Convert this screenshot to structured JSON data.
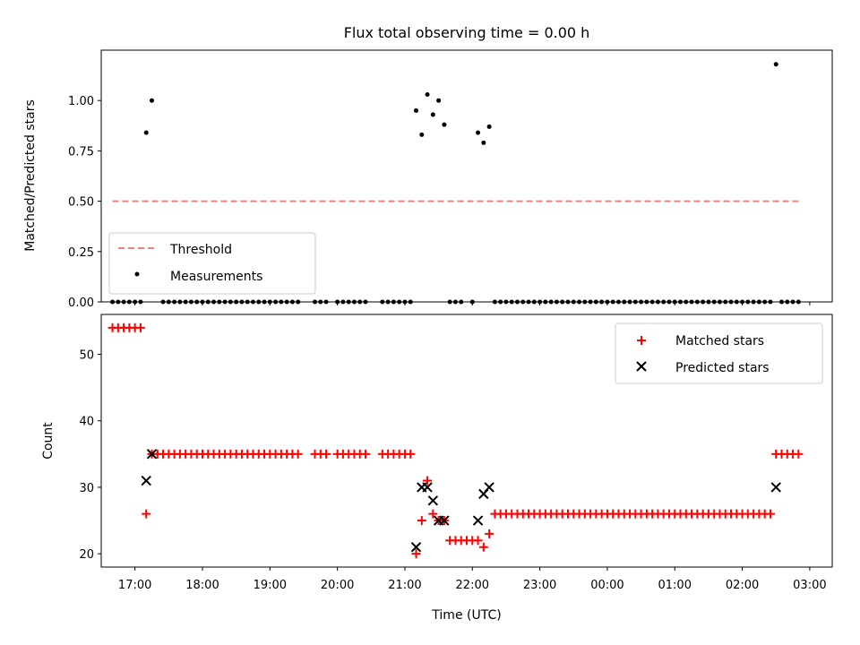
{
  "chart_data": [
    {
      "type": "scatter",
      "title": "Flux total observing time = 0.00 h",
      "xlabel": "",
      "ylabel": "Matched/Predicted stars",
      "x_unit": "time (UTC)",
      "xlim": [
        "16:30",
        "03:20"
      ],
      "ylim": [
        0,
        1.25
      ],
      "yticks": [
        "0.00",
        "0.25",
        "0.50",
        "0.75",
        "1.00"
      ],
      "legend_position": "lower-left",
      "series": [
        {
          "name": "Threshold",
          "style": "dashed-line",
          "color": "#f08080",
          "x": [
            "16:40",
            "02:50"
          ],
          "y": [
            0.5,
            0.5
          ]
        },
        {
          "name": "Measurements",
          "style": "dot",
          "color": "#000000",
          "x": [
            "16:40",
            "16:45",
            "16:50",
            "16:55",
            "17:00",
            "17:05",
            "17:10",
            "17:15",
            "17:25",
            "17:30",
            "17:35",
            "17:40",
            "17:45",
            "17:50",
            "17:55",
            "18:00",
            "18:05",
            "18:10",
            "18:15",
            "18:20",
            "18:25",
            "18:30",
            "18:35",
            "18:40",
            "18:45",
            "18:50",
            "18:55",
            "19:00",
            "19:05",
            "19:10",
            "19:15",
            "19:20",
            "19:25",
            "19:40",
            "19:45",
            "19:50",
            "20:00",
            "20:05",
            "20:10",
            "20:15",
            "20:20",
            "20:25",
            "20:40",
            "20:45",
            "20:50",
            "20:55",
            "21:00",
            "21:05",
            "21:10",
            "21:15",
            "21:20",
            "21:25",
            "21:30",
            "21:35",
            "21:40",
            "21:45",
            "21:50",
            "22:00",
            "22:05",
            "22:10",
            "22:15",
            "22:20",
            "22:25",
            "22:30",
            "22:35",
            "22:40",
            "22:45",
            "22:50",
            "22:55",
            "23:00",
            "23:05",
            "23:10",
            "23:15",
            "23:20",
            "23:25",
            "23:30",
            "23:35",
            "23:40",
            "23:45",
            "23:50",
            "23:55",
            "00:00",
            "00:05",
            "00:10",
            "00:15",
            "00:20",
            "00:25",
            "00:30",
            "00:35",
            "00:40",
            "00:45",
            "00:50",
            "00:55",
            "01:00",
            "01:05",
            "01:10",
            "01:15",
            "01:20",
            "01:25",
            "01:30",
            "01:35",
            "01:40",
            "01:45",
            "01:50",
            "01:55",
            "02:00",
            "02:05",
            "02:10",
            "02:15",
            "02:20",
            "02:25",
            "02:30",
            "02:35",
            "02:40",
            "02:45",
            "02:50"
          ],
          "y": [
            0,
            0,
            0,
            0,
            0,
            0,
            0.84,
            1.0,
            0,
            0,
            0,
            0,
            0,
            0,
            0,
            0,
            0,
            0,
            0,
            0,
            0,
            0,
            0,
            0,
            0,
            0,
            0,
            0,
            0,
            0,
            0,
            0,
            0,
            0,
            0,
            0,
            0,
            0,
            0,
            0,
            0,
            0,
            0,
            0,
            0,
            0,
            0,
            0,
            0.95,
            0.83,
            1.03,
            0.93,
            1.0,
            0.88,
            0,
            0,
            0,
            0,
            0.84,
            0.79,
            0.87,
            0,
            0,
            0,
            0,
            0,
            0,
            0,
            0,
            0,
            0,
            0,
            0,
            0,
            0,
            0,
            0,
            0,
            0,
            0,
            0,
            0,
            0,
            0,
            0,
            0,
            0,
            0,
            0,
            0,
            0,
            0,
            0,
            0,
            0,
            0,
            0,
            0,
            0,
            0,
            0,
            0,
            0,
            0,
            0,
            0,
            0,
            0,
            0,
            0,
            0,
            1.18,
            0,
            0,
            0,
            0
          ]
        }
      ]
    },
    {
      "type": "scatter",
      "title": "",
      "xlabel": "Time (UTC)",
      "ylabel": "Count",
      "x_unit": "time (UTC)",
      "xlim": [
        "16:30",
        "03:20"
      ],
      "ylim": [
        18,
        56
      ],
      "yticks": [
        "20",
        "30",
        "40",
        "50"
      ],
      "xticks": [
        "17:00",
        "18:00",
        "19:00",
        "20:00",
        "21:00",
        "22:00",
        "23:00",
        "00:00",
        "01:00",
        "02:00",
        "03:00"
      ],
      "legend_position": "upper-right",
      "series": [
        {
          "name": "Matched stars",
          "marker": "+",
          "color": "#ff0000",
          "x": [
            "16:40",
            "16:45",
            "16:50",
            "16:55",
            "17:00",
            "17:05",
            "17:10",
            "17:15",
            "17:20",
            "17:25",
            "17:30",
            "17:35",
            "17:40",
            "17:45",
            "17:50",
            "17:55",
            "18:00",
            "18:05",
            "18:10",
            "18:15",
            "18:20",
            "18:25",
            "18:30",
            "18:35",
            "18:40",
            "18:45",
            "18:50",
            "18:55",
            "19:00",
            "19:05",
            "19:10",
            "19:15",
            "19:20",
            "19:25",
            "19:40",
            "19:45",
            "19:50",
            "20:00",
            "20:05",
            "20:10",
            "20:15",
            "20:20",
            "20:25",
            "20:40",
            "20:45",
            "20:50",
            "20:55",
            "21:00",
            "21:05",
            "21:10",
            "21:15",
            "21:20",
            "21:25",
            "21:30",
            "21:35",
            "21:40",
            "21:45",
            "21:50",
            "21:55",
            "22:00",
            "22:05",
            "22:10",
            "22:15",
            "22:20",
            "22:25",
            "22:30",
            "22:35",
            "22:40",
            "22:45",
            "22:50",
            "22:55",
            "23:00",
            "23:05",
            "23:10",
            "23:15",
            "23:20",
            "23:25",
            "23:30",
            "23:35",
            "23:40",
            "23:45",
            "23:50",
            "23:55",
            "00:00",
            "00:05",
            "00:10",
            "00:15",
            "00:20",
            "00:25",
            "00:30",
            "00:35",
            "00:40",
            "00:45",
            "00:50",
            "00:55",
            "01:00",
            "01:05",
            "01:10",
            "01:15",
            "01:20",
            "01:25",
            "01:30",
            "01:35",
            "01:40",
            "01:45",
            "01:50",
            "01:55",
            "02:00",
            "02:05",
            "02:10",
            "02:15",
            "02:20",
            "02:25",
            "02:30",
            "02:35",
            "02:40",
            "02:45",
            "02:50"
          ],
          "y": [
            54,
            54,
            54,
            54,
            54,
            54,
            26,
            35,
            35,
            35,
            35,
            35,
            35,
            35,
            35,
            35,
            35,
            35,
            35,
            35,
            35,
            35,
            35,
            35,
            35,
            35,
            35,
            35,
            35,
            35,
            35,
            35,
            35,
            35,
            35,
            35,
            35,
            35,
            35,
            35,
            35,
            35,
            35,
            35,
            35,
            35,
            35,
            35,
            35,
            20,
            25,
            31,
            26,
            25,
            25,
            22,
            22,
            22,
            22,
            22,
            22,
            21,
            23,
            26,
            26,
            26,
            26,
            26,
            26,
            26,
            26,
            26,
            26,
            26,
            26,
            26,
            26,
            26,
            26,
            26,
            26,
            26,
            26,
            26,
            26,
            26,
            26,
            26,
            26,
            26,
            26,
            26,
            26,
            26,
            26,
            26,
            26,
            26,
            26,
            26,
            26,
            26,
            26,
            26,
            26,
            26,
            26,
            26,
            26,
            26,
            26,
            26,
            26,
            35,
            35,
            35,
            35,
            35
          ]
        },
        {
          "name": "Predicted stars",
          "marker": "x",
          "color": "#000000",
          "x": [
            "17:10",
            "17:15",
            "21:10",
            "21:15",
            "21:20",
            "21:25",
            "21:30",
            "21:35",
            "22:05",
            "22:10",
            "22:15",
            "02:30"
          ],
          "y": [
            31,
            35,
            21,
            30,
            30,
            28,
            25,
            25,
            25,
            29,
            30,
            30
          ]
        }
      ]
    }
  ]
}
